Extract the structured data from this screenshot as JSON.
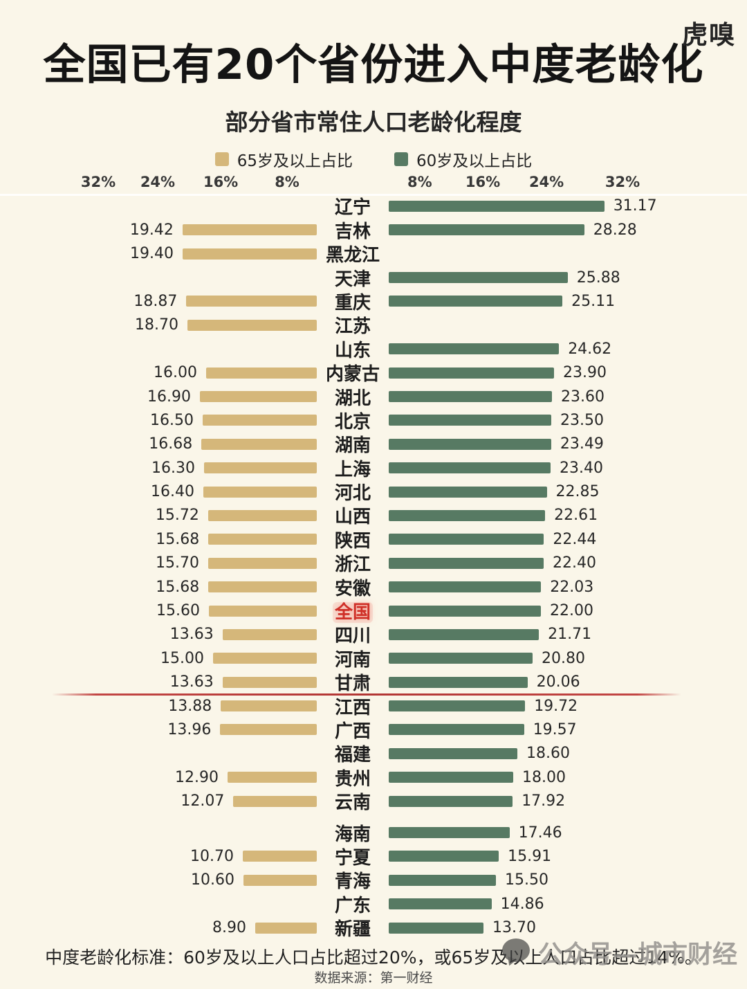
{
  "ui": {
    "logo": "虎嗅",
    "title": "全国已有20个省份进入中度老龄化",
    "subtitle": "部分省市常住人口老龄化程度",
    "footnote": "中度老龄化标准：60岁及以上人口占比超过20%，或65岁及以上人口占比超过14%。",
    "source": "数据来源：第一财经",
    "watermark": "公众号—城市财经",
    "background_color": "#faf6e9",
    "threshold_line_color": "#b23634",
    "highlight_color": "#cf2f27"
  },
  "chart_data": {
    "type": "bar",
    "variant": "diverging-horizontal",
    "title": "部分省市常住人口老龄化程度",
    "unit": "%",
    "axis_ticks_left": [
      "32%",
      "24%",
      "16%",
      "8%"
    ],
    "axis_ticks_right": [
      "8%",
      "16%",
      "24%",
      "32%"
    ],
    "xlim_each_side": [
      0,
      36
    ],
    "grid": false,
    "legend_position": "top",
    "series": [
      {
        "name": "65岁及以上占比",
        "side": "left",
        "color": "#d5b77a"
      },
      {
        "name": "60岁及以上占比",
        "side": "right",
        "color": "#577a63"
      }
    ],
    "rows": [
      {
        "category": "辽宁",
        "left": null,
        "right": "31.17"
      },
      {
        "category": "吉林",
        "left": "19.42",
        "right": "28.28"
      },
      {
        "category": "黑龙江",
        "left": "19.40",
        "right": null
      },
      {
        "category": "天津",
        "left": null,
        "right": "25.88"
      },
      {
        "category": "重庆",
        "left": "18.87",
        "right": "25.11"
      },
      {
        "category": "江苏",
        "left": "18.70",
        "right": null
      },
      {
        "category": "山东",
        "left": null,
        "right": "24.62"
      },
      {
        "category": "内蒙古",
        "left": "16.00",
        "right": "23.90"
      },
      {
        "category": "湖北",
        "left": "16.90",
        "right": "23.60"
      },
      {
        "category": "北京",
        "left": "16.50",
        "right": "23.50"
      },
      {
        "category": "湖南",
        "left": "16.68",
        "right": "23.49"
      },
      {
        "category": "上海",
        "left": "16.30",
        "right": "23.40"
      },
      {
        "category": "河北",
        "left": "16.40",
        "right": "22.85"
      },
      {
        "category": "山西",
        "left": "15.72",
        "right": "22.61"
      },
      {
        "category": "陕西",
        "left": "15.68",
        "right": "22.44"
      },
      {
        "category": "浙江",
        "left": "15.70",
        "right": "22.40"
      },
      {
        "category": "安徽",
        "left": "15.68",
        "right": "22.03"
      },
      {
        "category": "全国",
        "left": "15.60",
        "right": "22.00",
        "highlight": true
      },
      {
        "category": "四川",
        "left": "13.63",
        "right": "21.71"
      },
      {
        "category": "河南",
        "left": "15.00",
        "right": "20.80"
      },
      {
        "category": "甘肃",
        "left": "13.63",
        "right": "20.06",
        "divider_after": true
      },
      {
        "category": "江西",
        "left": "13.88",
        "right": "19.72"
      },
      {
        "category": "广西",
        "left": "13.96",
        "right": "19.57"
      },
      {
        "category": "福建",
        "left": null,
        "right": "18.60"
      },
      {
        "category": "贵州",
        "left": "12.90",
        "right": "18.00"
      },
      {
        "category": "云南",
        "left": "12.07",
        "right": "17.92"
      },
      {
        "category": "海南",
        "left": null,
        "right": "17.46",
        "gap_before": true
      },
      {
        "category": "宁夏",
        "left": "10.70",
        "right": "15.91"
      },
      {
        "category": "青海",
        "left": "10.60",
        "right": "15.50"
      },
      {
        "category": "广东",
        "left": null,
        "right": "14.86"
      },
      {
        "category": "新疆",
        "left": "8.90",
        "right": "13.70"
      }
    ]
  }
}
